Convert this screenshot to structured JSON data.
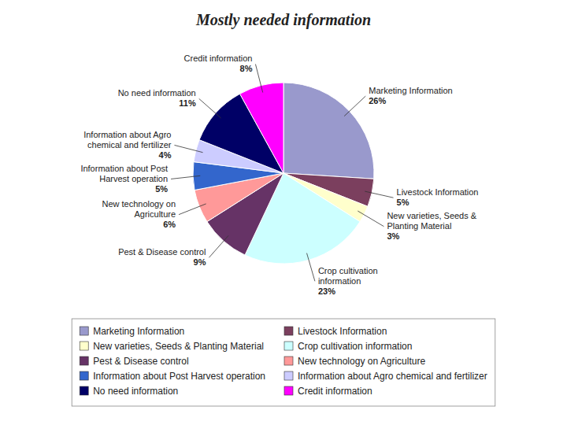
{
  "chart_data": {
    "type": "pie",
    "title": "Mostly needed information",
    "categories": [
      "Marketing Information",
      "Livestock Information",
      "New varieties, Seeds & Planting Material",
      "Crop cultivation information",
      "Pest & Disease control",
      "New technology on Agriculture",
      "Information about Post Harvest operation",
      "Information about Agro chemical and fertilizer",
      "No need information",
      "Credit information"
    ],
    "values": [
      26,
      5,
      3,
      23,
      9,
      6,
      5,
      4,
      11,
      8
    ],
    "value_labels": [
      "26%",
      "5%",
      "3%",
      "23%",
      "9%",
      "6%",
      "5%",
      "4%",
      "11%",
      "8%"
    ],
    "colors": [
      "#9999CC",
      "#7B3F5E",
      "#FFFFCC",
      "#CCFFFF",
      "#663366",
      "#FF9999",
      "#3366CC",
      "#CCCCFF",
      "#000066",
      "#FF00FF"
    ],
    "data_labels": true,
    "legend": "bottom"
  }
}
